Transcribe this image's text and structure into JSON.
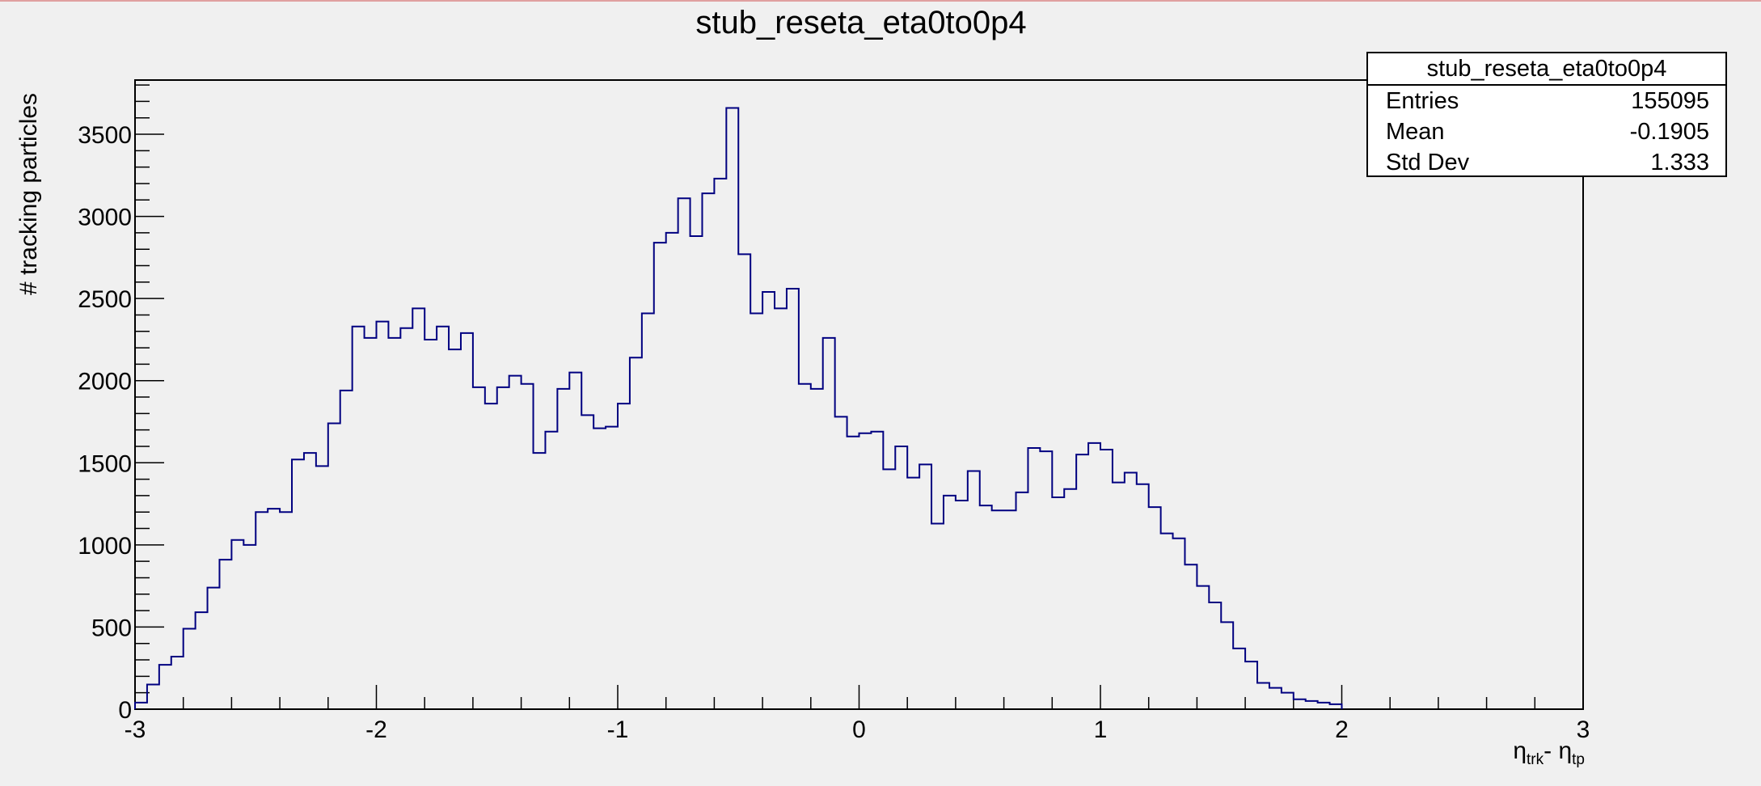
{
  "chart_data": {
    "type": "bar",
    "style": "step-histogram",
    "title": "stub_reseta_eta0to0p4",
    "xlabel": {
      "symbol": "η",
      "sub1": "trk",
      "mid": "- η",
      "sub2": "tp"
    },
    "ylabel": "# tracking particles",
    "xlim": [
      -3,
      3
    ],
    "ylim": [
      0,
      3830
    ],
    "x_ticks": [
      -3,
      -2,
      -1,
      0,
      1,
      2,
      3
    ],
    "x_tick_labels": [
      "-3",
      "-2",
      "-1",
      "0",
      "1",
      "2",
      "3"
    ],
    "y_ticks": [
      0,
      500,
      1000,
      1500,
      2000,
      2500,
      3000,
      3500
    ],
    "y_tick_labels": [
      "0",
      "500",
      "1000",
      "1500",
      "2000",
      "2500",
      "3000",
      "3500"
    ],
    "bin_width": 0.05,
    "bin_start": -3,
    "values": [
      40,
      150,
      270,
      320,
      490,
      590,
      740,
      910,
      1030,
      1000,
      1200,
      1220,
      1200,
      1520,
      1560,
      1480,
      1740,
      1940,
      2330,
      2260,
      2360,
      2260,
      2320,
      2440,
      2250,
      2330,
      2190,
      2290,
      1960,
      1860,
      1960,
      2030,
      1980,
      1560,
      1690,
      1950,
      2050,
      1790,
      1710,
      1720,
      1860,
      2140,
      2410,
      2840,
      2900,
      3110,
      2880,
      3140,
      3230,
      3660,
      2770,
      2410,
      2540,
      2440,
      2560,
      1980,
      1950,
      2260,
      1780,
      1660,
      1680,
      1690,
      1460,
      1600,
      1410,
      1490,
      1130,
      1300,
      1270,
      1450,
      1240,
      1210,
      1210,
      1320,
      1590,
      1570,
      1290,
      1340,
      1550,
      1620,
      1580,
      1380,
      1440,
      1370,
      1230,
      1070,
      1040,
      880,
      750,
      650,
      530,
      370,
      290,
      160,
      130,
      100,
      60,
      50,
      40,
      30
    ],
    "line_color": "#000080",
    "grid": false,
    "legend": "none"
  },
  "stats": {
    "title": "stub_reseta_eta0to0p4",
    "rows": [
      {
        "label": "Entries",
        "value": "155095"
      },
      {
        "label": "Mean",
        "value": "-0.1905"
      },
      {
        "label": "Std Dev",
        "value": "1.333"
      }
    ]
  }
}
